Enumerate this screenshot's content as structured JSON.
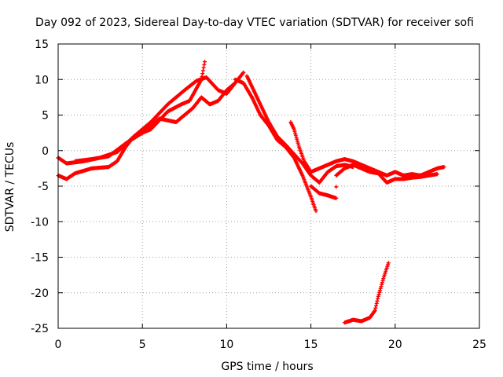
{
  "chart_data": {
    "type": "scatter",
    "title": "Day 092 of 2023, Sidereal Day-to-day VTEC variation (SDTVAR) for receiver sofi",
    "xlabel": "GPS time / hours",
    "ylabel": "SDTVAR / TECUs",
    "xlim": [
      0,
      25
    ],
    "ylim": [
      -25,
      15
    ],
    "xticks": [
      0,
      5,
      10,
      15,
      20,
      25
    ],
    "yticks": [
      -25,
      -20,
      -15,
      -10,
      -5,
      0,
      5,
      10,
      15
    ],
    "grid": true,
    "marker": "+",
    "color": "#ff0000",
    "series": [
      {
        "name": "trace-1",
        "points": [
          [
            0.0,
            -1.0
          ],
          [
            0.5,
            -1.8
          ],
          [
            1.5,
            -1.5
          ],
          [
            2.5,
            -1.0
          ],
          [
            3.5,
            -0.2
          ],
          [
            4.5,
            2.0
          ],
          [
            5.5,
            4.0
          ],
          [
            6.5,
            6.5
          ],
          [
            7.5,
            8.5
          ],
          [
            8.2,
            9.8
          ],
          [
            8.8,
            10.3
          ],
          [
            9.5,
            8.5
          ],
          [
            10.0,
            8.0
          ],
          [
            10.5,
            9.5
          ],
          [
            11.0,
            11.0
          ]
        ]
      },
      {
        "name": "trace-2",
        "points": [
          [
            0.0,
            -3.5
          ],
          [
            0.5,
            -4.0
          ],
          [
            1.0,
            -3.2
          ],
          [
            2.0,
            -2.5
          ],
          [
            3.0,
            -2.3
          ],
          [
            3.5,
            -1.5
          ],
          [
            4.0,
            0.5
          ],
          [
            4.5,
            2.0
          ],
          [
            5.5,
            3.0
          ],
          [
            6.5,
            5.5
          ],
          [
            7.3,
            6.5
          ],
          [
            7.8,
            7.0
          ],
          [
            8.5,
            10.0
          ],
          [
            8.7,
            12.5
          ]
        ]
      },
      {
        "name": "trace-3",
        "points": [
          [
            1.0,
            -1.5
          ],
          [
            2.0,
            -1.2
          ],
          [
            3.0,
            -0.8
          ],
          [
            4.0,
            1.0
          ],
          [
            5.0,
            2.5
          ],
          [
            6.0,
            4.5
          ],
          [
            7.0,
            4.0
          ],
          [
            8.0,
            6.0
          ],
          [
            8.5,
            7.5
          ],
          [
            9.0,
            6.5
          ],
          [
            9.5,
            7.0
          ],
          [
            10.0,
            8.5
          ],
          [
            10.5,
            9.5
          ]
        ]
      },
      {
        "name": "trace-4",
        "points": [
          [
            10.5,
            10.0
          ],
          [
            11.0,
            9.5
          ],
          [
            11.5,
            7.5
          ],
          [
            12.0,
            5.0
          ],
          [
            12.5,
            3.5
          ],
          [
            13.0,
            1.5
          ],
          [
            13.5,
            0.5
          ],
          [
            14.0,
            -1.0
          ],
          [
            14.5,
            -3.5
          ],
          [
            15.0,
            -6.5
          ],
          [
            15.3,
            -8.5
          ]
        ]
      },
      {
        "name": "trace-5",
        "points": [
          [
            11.2,
            10.5
          ],
          [
            11.5,
            9.0
          ],
          [
            12.0,
            6.5
          ],
          [
            12.5,
            4.0
          ],
          [
            13.0,
            2.0
          ],
          [
            13.5,
            0.8
          ],
          [
            14.0,
            -0.5
          ],
          [
            14.5,
            -1.8
          ],
          [
            15.0,
            -3.5
          ],
          [
            15.5,
            -4.5
          ],
          [
            16.0,
            -3.0
          ],
          [
            16.5,
            -2.2
          ],
          [
            17.0,
            -2.0
          ],
          [
            17.5,
            -2.3
          ]
        ]
      },
      {
        "name": "trace-6",
        "points": [
          [
            13.8,
            4.0
          ],
          [
            14.0,
            3.0
          ],
          [
            14.3,
            0.5
          ],
          [
            14.6,
            -1.5
          ],
          [
            15.0,
            -3.0
          ],
          [
            15.5,
            -2.5
          ],
          [
            16.0,
            -2.0
          ],
          [
            16.5,
            -1.5
          ],
          [
            17.0,
            -1.2
          ],
          [
            17.5,
            -1.5
          ],
          [
            18.0,
            -2.0
          ],
          [
            18.5,
            -2.5
          ],
          [
            19.0,
            -3.0
          ],
          [
            19.5,
            -3.5
          ],
          [
            20.0,
            -3.0
          ],
          [
            20.5,
            -3.5
          ],
          [
            21.0,
            -3.3
          ],
          [
            21.5,
            -3.5
          ],
          [
            22.0,
            -3.0
          ],
          [
            22.5,
            -2.5
          ],
          [
            22.9,
            -2.3
          ]
        ]
      },
      {
        "name": "trace-7",
        "points": [
          [
            15.0,
            -5.0
          ],
          [
            15.5,
            -6.0
          ],
          [
            16.0,
            -6.3
          ],
          [
            16.5,
            -6.7
          ],
          [
            16.5,
            -3.5
          ],
          [
            17.0,
            -2.5
          ],
          [
            17.5,
            -2.0
          ],
          [
            18.0,
            -2.5
          ],
          [
            18.5,
            -3.0
          ],
          [
            19.0,
            -3.2
          ],
          [
            19.5,
            -4.5
          ],
          [
            20.0,
            -4.0
          ],
          [
            20.5,
            -4.0
          ],
          [
            21.0,
            -3.8
          ],
          [
            21.5,
            -3.7
          ],
          [
            22.0,
            -3.5
          ],
          [
            22.5,
            -3.3
          ]
        ]
      },
      {
        "name": "trace-8",
        "points": [
          [
            17.0,
            -24.2
          ],
          [
            17.5,
            -23.8
          ],
          [
            18.0,
            -24.0
          ],
          [
            18.5,
            -23.5
          ],
          [
            18.8,
            -22.5
          ],
          [
            19.0,
            -20.5
          ],
          [
            19.3,
            -18.0
          ],
          [
            19.6,
            -15.8
          ]
        ]
      }
    ]
  }
}
